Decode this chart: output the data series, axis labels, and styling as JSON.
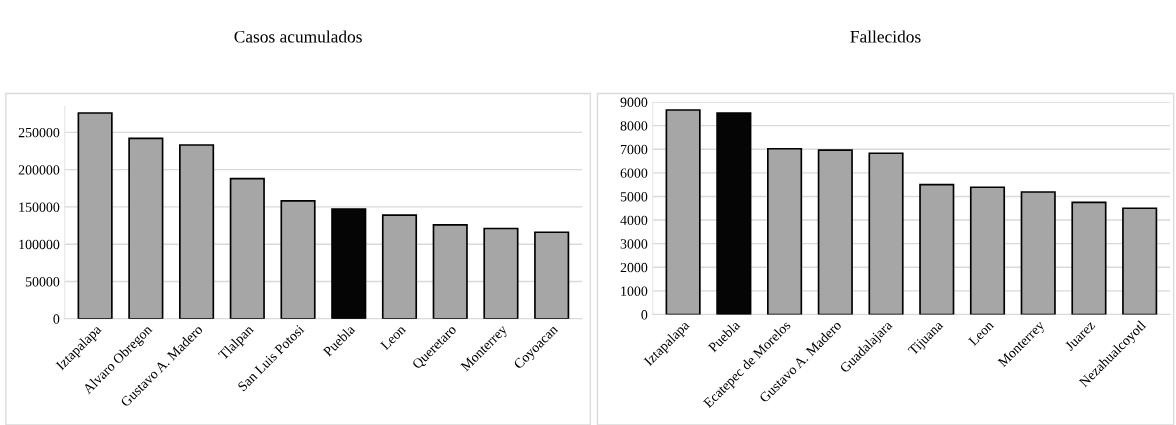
{
  "chart_data": [
    {
      "type": "bar",
      "title": "Casos acumulados",
      "categories": [
        "Iztapalapa",
        "Alvaro Obregon",
        "Gustavo A. Madero",
        "Tlalpan",
        "San Luis Potosi",
        "Puebla",
        "Leon",
        "Queretaro",
        "Monterrey",
        "Coyoacan"
      ],
      "values": [
        276000,
        242000,
        233000,
        188000,
        158000,
        147000,
        139000,
        126000,
        121000,
        116000
      ],
      "colors": [
        "#a6a6a6",
        "#a6a6a6",
        "#a6a6a6",
        "#a6a6a6",
        "#a6a6a6",
        "#050505",
        "#a6a6a6",
        "#a6a6a6",
        "#a6a6a6",
        "#a6a6a6"
      ],
      "ylim": [
        0,
        285000
      ],
      "yticks": [
        0,
        50000,
        100000,
        150000,
        200000,
        250000
      ],
      "grid": "y"
    },
    {
      "type": "bar",
      "title": "Fallecidos",
      "categories": [
        "Iztapalapa",
        "Puebla",
        "Ecatepec de Morelos",
        "Gustavo A. Madero",
        "Guadalajara",
        "Tijuana",
        "Leon",
        "Monterrey",
        "Juarez",
        "Nezahualcoyotl"
      ],
      "values": [
        8660,
        8530,
        7020,
        6960,
        6830,
        5500,
        5390,
        5190,
        4750,
        4500
      ],
      "colors": [
        "#a6a6a6",
        "#050505",
        "#a6a6a6",
        "#a6a6a6",
        "#a6a6a6",
        "#a6a6a6",
        "#a6a6a6",
        "#a6a6a6",
        "#a6a6a6",
        "#a6a6a6"
      ],
      "ylim": [
        0,
        9000
      ],
      "yticks": [
        0,
        1000,
        2000,
        3000,
        4000,
        5000,
        6000,
        7000,
        8000,
        9000
      ],
      "grid": "y"
    }
  ]
}
